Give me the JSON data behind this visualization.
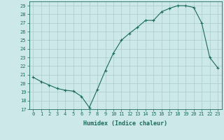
{
  "x": [
    0,
    1,
    2,
    3,
    4,
    5,
    6,
    7,
    8,
    9,
    10,
    11,
    12,
    13,
    14,
    15,
    16,
    17,
    18,
    19,
    20,
    21,
    22,
    23
  ],
  "y": [
    20.7,
    20.2,
    19.8,
    19.4,
    19.2,
    19.1,
    18.5,
    17.2,
    19.3,
    21.5,
    23.5,
    25.0,
    25.8,
    26.5,
    27.3,
    27.3,
    28.3,
    28.7,
    29.0,
    29.0,
    28.8,
    27.0,
    23.0,
    21.8
  ],
  "xlabel": "Humidex (Indice chaleur)",
  "xlim": [
    -0.5,
    23.5
  ],
  "ylim": [
    17,
    29.5
  ],
  "yticks": [
    17,
    18,
    19,
    20,
    21,
    22,
    23,
    24,
    25,
    26,
    27,
    28,
    29
  ],
  "xticks": [
    0,
    1,
    2,
    3,
    4,
    5,
    6,
    7,
    8,
    9,
    10,
    11,
    12,
    13,
    14,
    15,
    16,
    17,
    18,
    19,
    20,
    21,
    22,
    23
  ],
  "line_color": "#1a6b5a",
  "marker": "+",
  "bg_color": "#cce8e8",
  "grid_color": "#aacccc",
  "tick_color": "#1a6b5a",
  "label_fontsize": 5.0,
  "xlabel_fontsize": 6.0
}
